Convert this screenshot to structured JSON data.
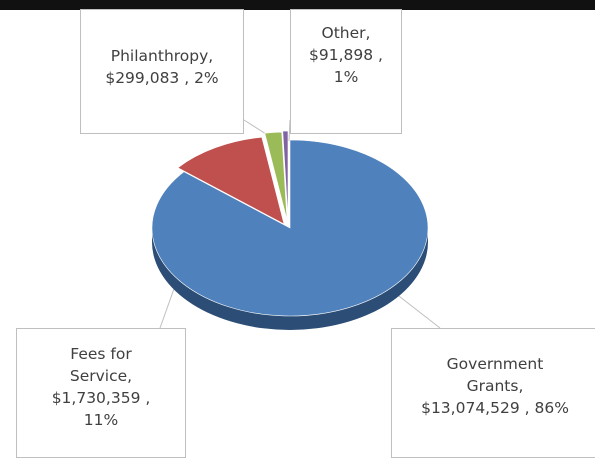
{
  "chart_data": {
    "type": "pie",
    "title": "",
    "style": "3d-exploded",
    "slices": [
      {
        "label": "Government Grants",
        "value": 13074529,
        "value_text": "$13,074,529",
        "percent_text": "86%",
        "color": "#4F81BD",
        "dark_color": "#2C4D75"
      },
      {
        "label": "Fees for Service",
        "value": 1730359,
        "value_text": "$1,730,359",
        "percent_text": "11%",
        "color": "#C0504D",
        "dark_color": "#7A2E2C"
      },
      {
        "label": "Philanthropy",
        "value": 299083,
        "value_text": "$299,083",
        "percent_text": "2%",
        "color": "#9BBB59",
        "dark_color": "#5E7A2C"
      },
      {
        "label": "Other",
        "value": 91898,
        "value_text": "$91,898",
        "percent_text": "1%",
        "color": "#8064A2",
        "dark_color": "#4D3A66"
      }
    ]
  },
  "labels": {
    "philanthropy": {
      "line1": "Philanthropy,",
      "line2": "$299,083 , 2%"
    },
    "other": {
      "line1": "Other,",
      "line2": "$91,898 ,",
      "line3": "1%"
    },
    "fees": {
      "line1": "Fees for",
      "line2": "Service,",
      "line3": "$1,730,359 ,",
      "line4": "11%"
    },
    "government": {
      "line1": "Government",
      "line2": "Grants,",
      "line3": "$13,074,529 , 86%"
    }
  }
}
